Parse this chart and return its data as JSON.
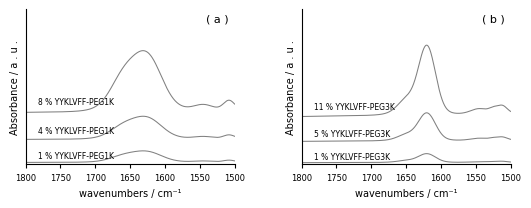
{
  "panel_a_label": "( a )",
  "panel_b_label": "( b )",
  "xlabel": "wavenumbers / cm⁻¹",
  "ylabel_a": "Absorbance / a . u .",
  "ylabel_b": "Absorbance / a . u .",
  "xticks": [
    1800,
    1750,
    1700,
    1650,
    1600,
    1550,
    1500
  ],
  "xticklabels": [
    "1800",
    "1750",
    "1700",
    "1650",
    "1600",
    "1550",
    "1500"
  ],
  "panel_a_labels": [
    "8 % YYKLVFF-PEG1K",
    "4 % YYKLVFF-PEG1K",
    "1 % YYKLVFF-PEG1K"
  ],
  "panel_b_labels": [
    "11 % YYKLVFF-PEG3K",
    "5 % YYKLVFF-PEG3K",
    "1 % YYKLVFF-PEG3K"
  ],
  "line_color": "#808080",
  "background_color": "#ffffff",
  "fontsize_tick": 6,
  "fontsize_label": 7,
  "fontsize_annot": 5.5,
  "fontsize_panel": 8
}
